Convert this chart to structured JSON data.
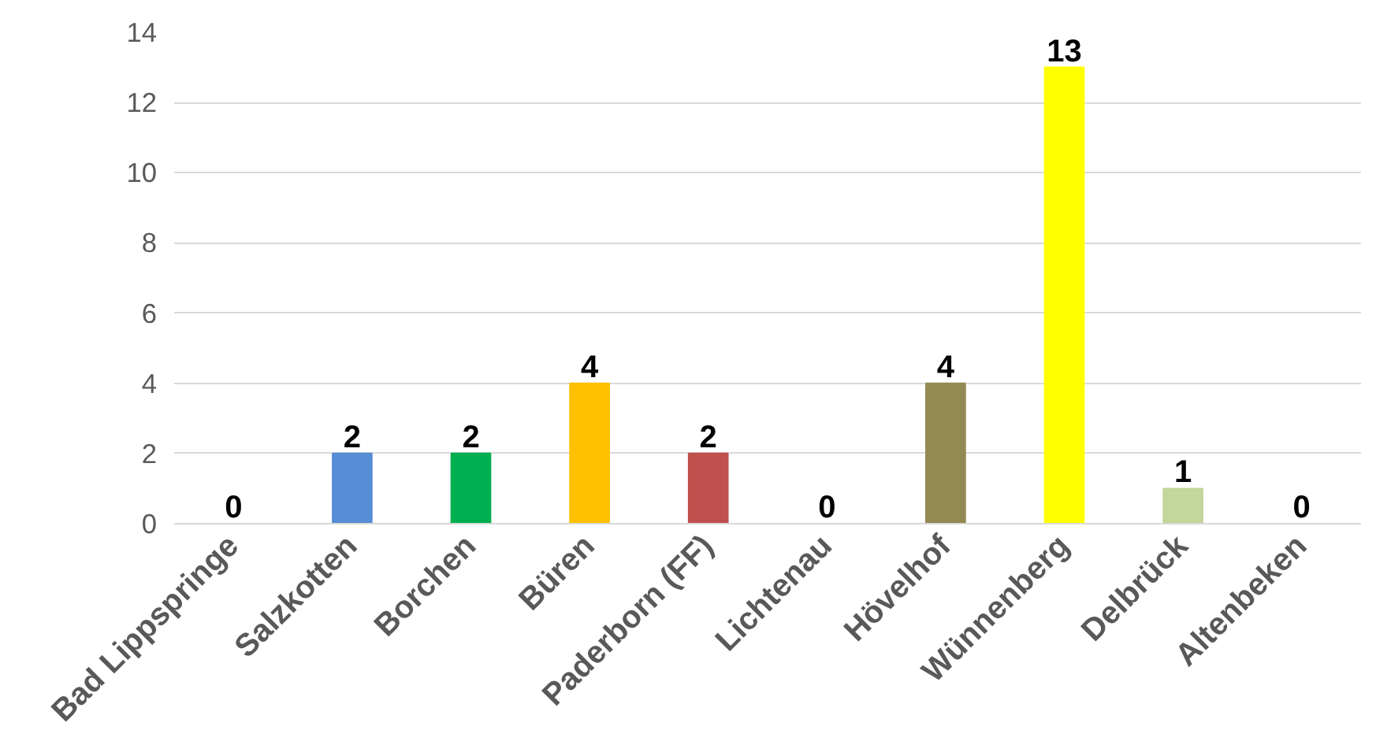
{
  "chart_data": {
    "type": "bar",
    "categories": [
      "Bad Lippspringe",
      "Salzkotten",
      "Borchen",
      "Büren",
      "Paderborn (FF)",
      "Lichtenau",
      "Hövelhof",
      "Wünnenberg",
      "Delbrück",
      "Altenbeken"
    ],
    "values": [
      0,
      2,
      2,
      4,
      2,
      0,
      4,
      13,
      1,
      0
    ],
    "colors": [
      "#4f81bd",
      "#558ed5",
      "#00b050",
      "#ffc000",
      "#c0504d",
      "#8064a2",
      "#938953",
      "#ffff00",
      "#c3d69b",
      "#4bacc6"
    ],
    "ylim": [
      0,
      14
    ],
    "yticks": [
      0,
      2,
      4,
      6,
      8,
      10,
      12,
      14
    ],
    "grid": "y",
    "data_labels": true
  }
}
